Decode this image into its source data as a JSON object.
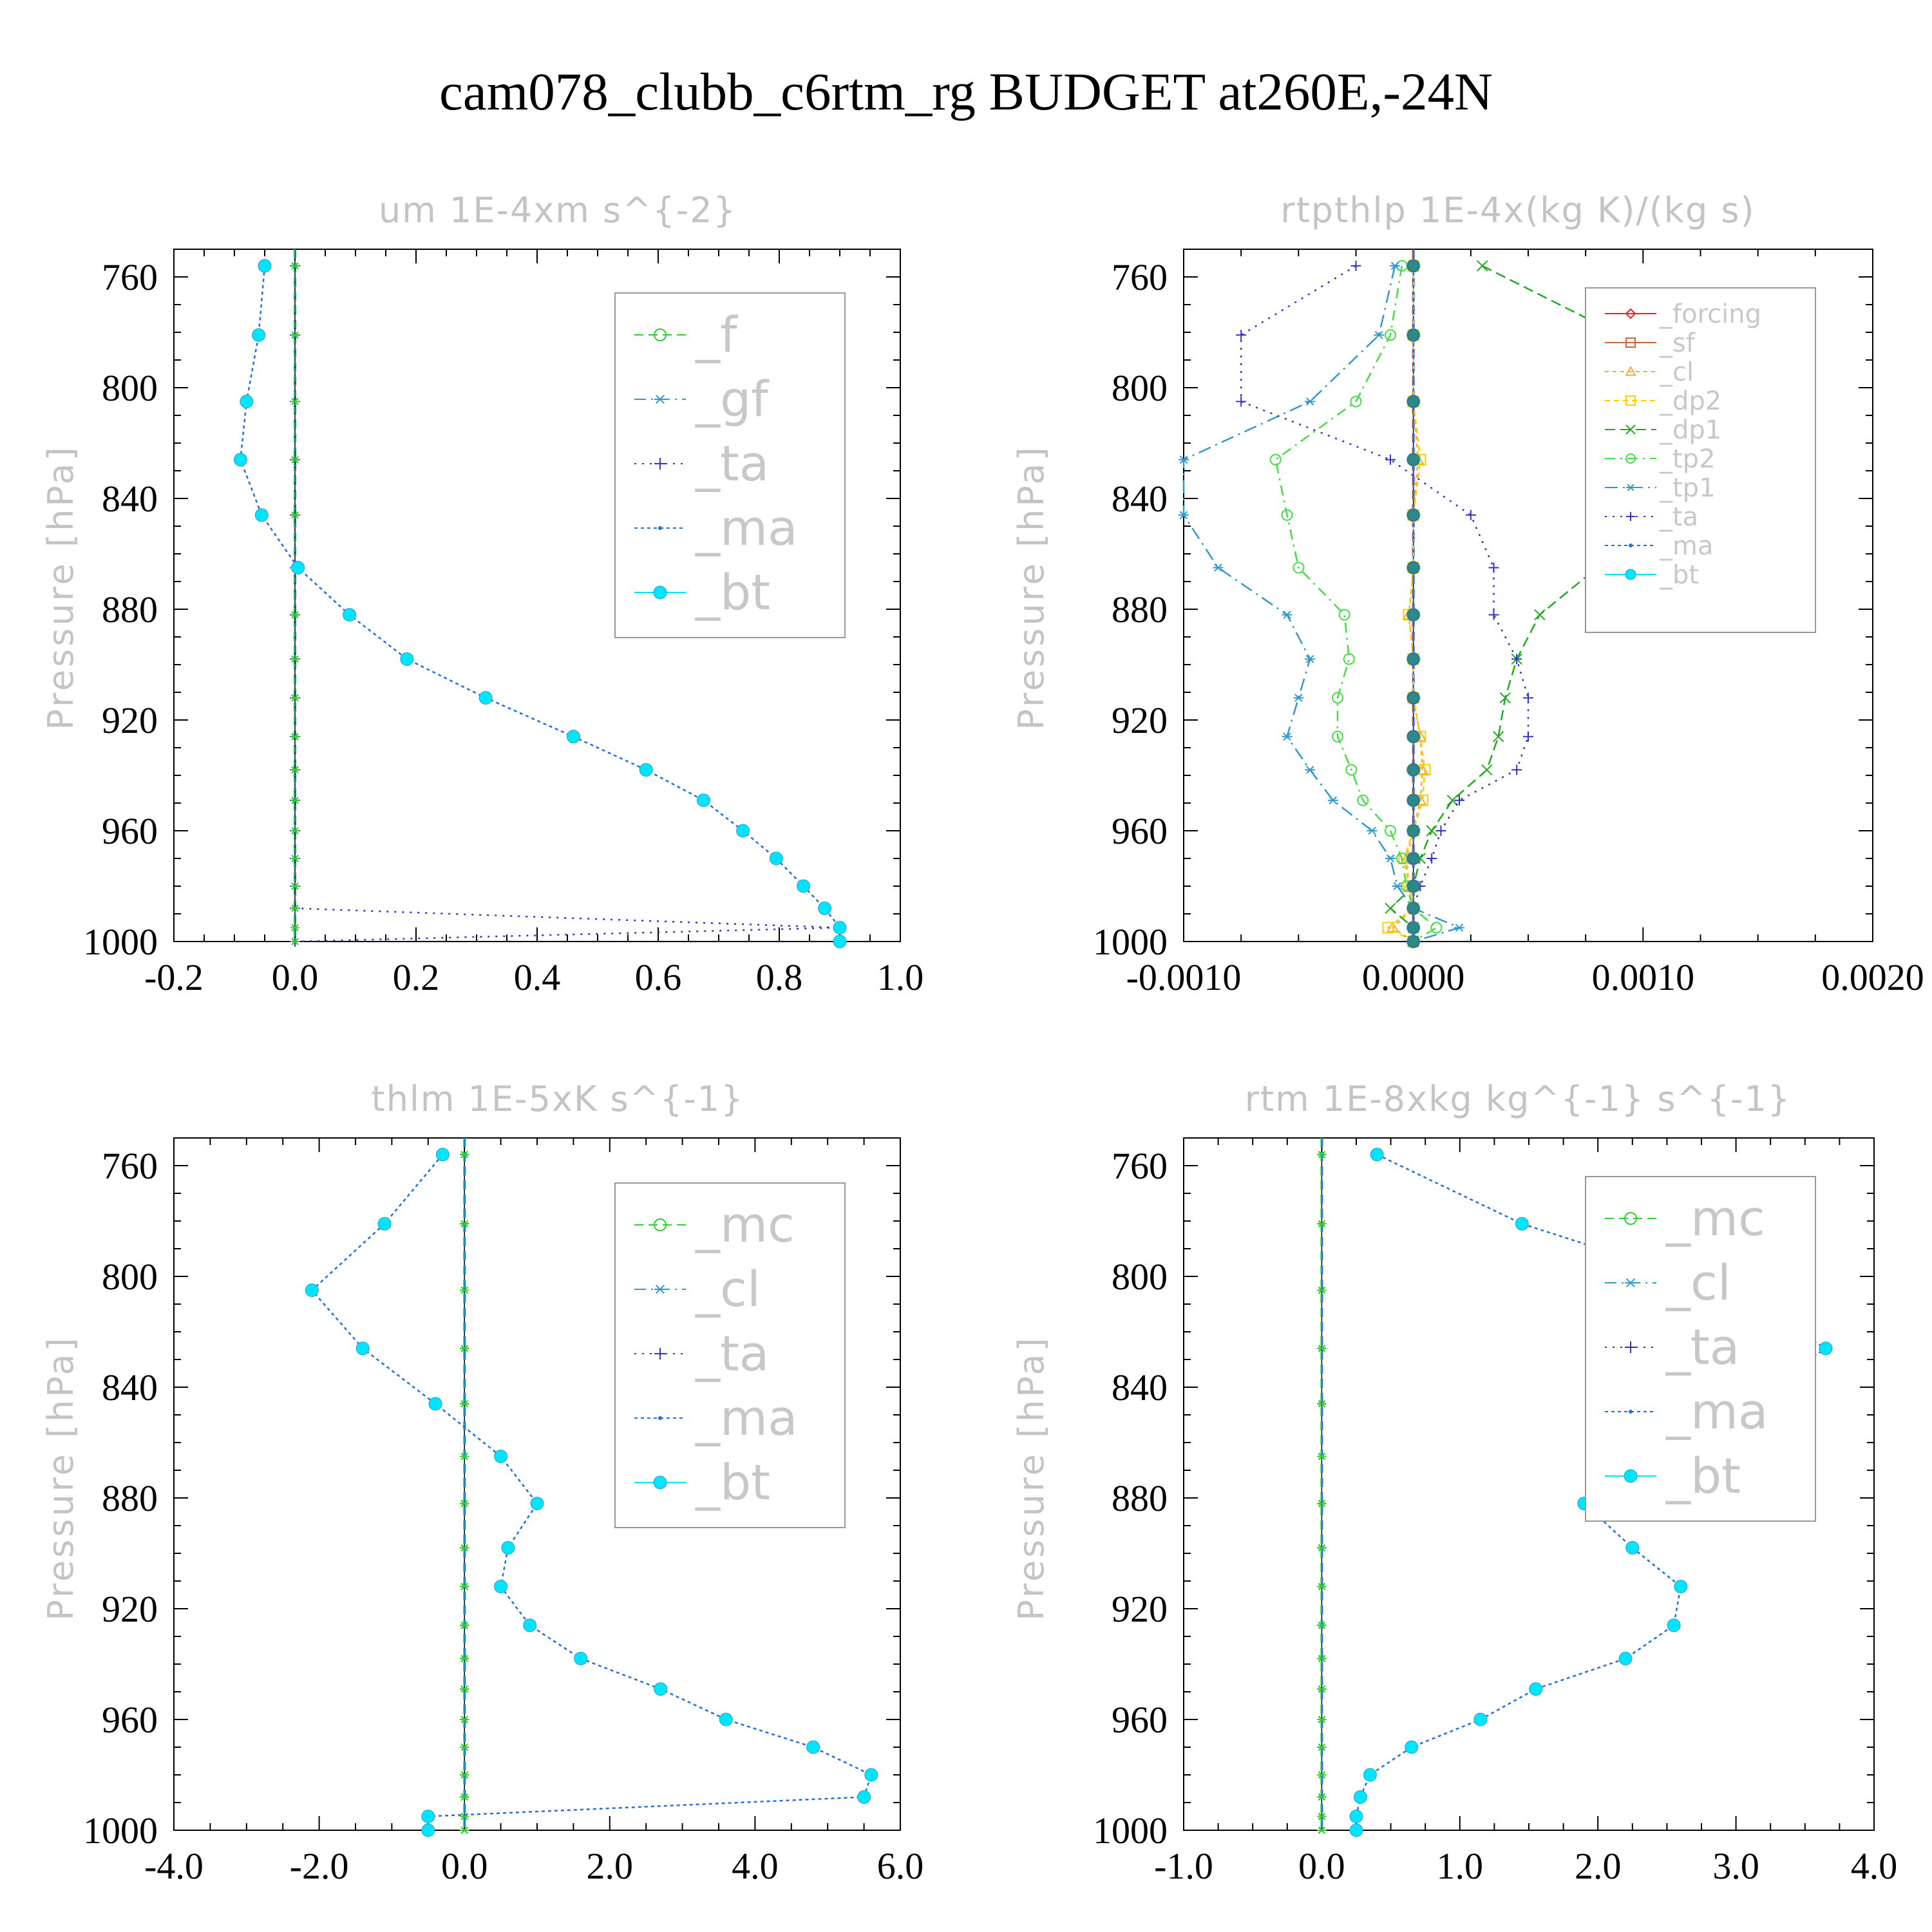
{
  "figure_title": "cam078_clubb_c6rtm_rg  BUDGET at260E,-24N",
  "colors": {
    "_f": "#33cc33",
    "_gf": "#3399cc",
    "_ta": "#3333cc",
    "_ma": "#1f6fe0",
    "_bt": "#00e5ff",
    "_forcing": "#ee2222",
    "_sf": "#cc6633",
    "_cl_r": "#ffaa33",
    "_dp2": "#ffcc00",
    "_dp1": "#22aa22",
    "_tp2": "#44dd44",
    "_tp1": "#3399cc",
    "_mc": "#33cc33",
    "_cl": "#3399cc"
  },
  "chart_data": [
    {
      "type": "line",
      "title": "um   1E-4xm s^{-2}",
      "ylabel": "Pressure [hPa]",
      "xlim": [
        -0.2,
        1.0
      ],
      "ylim": [
        750,
        1000
      ],
      "y_inverted": true,
      "xticks": [
        "-0.2",
        "0.0",
        "0.2",
        "0.4",
        "0.6",
        "0.8",
        "1.0"
      ],
      "yticks": [
        "760",
        "800",
        "840",
        "880",
        "920",
        "960",
        "1000"
      ],
      "legend_position": "top-right",
      "legend_style": "big",
      "y": [
        756,
        781,
        805,
        826,
        846,
        865,
        882,
        898,
        912,
        926,
        938,
        949,
        960,
        970,
        980,
        988,
        995,
        1000
      ],
      "series": [
        {
          "name": "_f",
          "style": "zero",
          "values": [
            0,
            0,
            0,
            0,
            0,
            0,
            0,
            0,
            0,
            0,
            0,
            0,
            0,
            0,
            0,
            0,
            0,
            0
          ]
        },
        {
          "name": "_gf",
          "style": "zero",
          "values": [
            0,
            0,
            0,
            0,
            0,
            0,
            0,
            0,
            0,
            0,
            0,
            0,
            0,
            0,
            0,
            0,
            0,
            0
          ]
        },
        {
          "name": "_ta",
          "style": "ta",
          "values": [
            0,
            0,
            0,
            0,
            0,
            0,
            0,
            0,
            0,
            0,
            0,
            0,
            0,
            0,
            0,
            0,
            0.9,
            0
          ]
        },
        {
          "name": "_ma",
          "style": "zero",
          "values": [
            0,
            0,
            0,
            0,
            0,
            0,
            0,
            0,
            0,
            0,
            0,
            0,
            0,
            0,
            0,
            0,
            0,
            0
          ]
        },
        {
          "name": "_bt",
          "style": "bt",
          "values": [
            -0.05,
            -0.06,
            -0.08,
            -0.09,
            -0.055,
            0.005,
            0.09,
            0.185,
            0.315,
            0.46,
            0.58,
            0.675,
            0.74,
            0.795,
            0.84,
            0.875,
            0.9,
            0.9
          ]
        }
      ]
    },
    {
      "type": "line",
      "title": "rtpthlp   1E-4x(kg K)/(kg s)",
      "ylabel": "Pressure [hPa]",
      "xlim": [
        -0.001,
        0.002
      ],
      "ylim": [
        750,
        1000
      ],
      "y_inverted": true,
      "xticks": [
        "-0.0010",
        "0.0000",
        "0.0010",
        "0.0020"
      ],
      "yticks": [
        "760",
        "800",
        "840",
        "880",
        "920",
        "960",
        "1000"
      ],
      "legend_position": "top-right",
      "legend_style": "small",
      "y": [
        756,
        781,
        805,
        826,
        846,
        865,
        882,
        898,
        912,
        926,
        938,
        949,
        960,
        970,
        980,
        988,
        995,
        1000
      ],
      "series": [
        {
          "name": "_forcing",
          "style": "zero",
          "values": [
            0,
            0,
            0,
            0,
            0,
            0,
            0,
            0,
            0,
            0,
            0,
            0,
            0,
            0,
            0,
            0,
            0,
            0
          ]
        },
        {
          "name": "_sf",
          "style": "zero",
          "values": [
            0,
            0,
            0,
            0,
            0,
            0,
            0,
            0,
            0,
            0,
            0,
            0,
            0,
            0,
            0,
            0,
            0,
            0
          ]
        },
        {
          "name": "_cl",
          "style": "cl_r",
          "values": [
            0,
            0,
            0,
            2e-05,
            0,
            0,
            -2e-05,
            0,
            0,
            3e-05,
            4e-05,
            3e-05,
            0,
            -3e-05,
            -2e-05,
            0,
            -9e-05,
            0
          ]
        },
        {
          "name": "_dp2",
          "style": "dp2",
          "values": [
            0,
            0,
            0,
            3e-05,
            0,
            0,
            -2e-05,
            0,
            0,
            3e-05,
            5e-05,
            4e-05,
            0,
            -4e-05,
            -2e-05,
            0,
            -0.00011,
            0
          ]
        },
        {
          "name": "_dp1",
          "style": "dp1",
          "values": [
            0.0003,
            0.0009,
            0.00145,
            0.00165,
            0.0011,
            0.0008,
            0.00055,
            0.00045,
            0.0004,
            0.00037,
            0.00032,
            0.00017,
            8e-05,
            3e-05,
            0,
            -0.0001,
            0,
            0
          ]
        },
        {
          "name": "_tp2",
          "style": "tp2",
          "values": [
            -5e-05,
            -0.0001,
            -0.00025,
            -0.0006,
            -0.00055,
            -0.0005,
            -0.0003,
            -0.00028,
            -0.00033,
            -0.00033,
            -0.00027,
            -0.00022,
            -0.0001,
            -5e-05,
            -3e-05,
            0,
            0.0001,
            0
          ]
        },
        {
          "name": "_tp1",
          "style": "tp1",
          "values": [
            -8e-05,
            -0.00015,
            -0.00045,
            -0.001,
            -0.001,
            -0.00085,
            -0.00055,
            -0.00045,
            -0.0005,
            -0.00055,
            -0.00045,
            -0.00035,
            -0.00018,
            -0.0001,
            -7e-05,
            0,
            0.0002,
            0
          ]
        },
        {
          "name": "_ta",
          "style": "ta",
          "values": [
            -0.00025,
            -0.00075,
            -0.00075,
            -0.0001,
            0.00025,
            0.00035,
            0.00035,
            0.00045,
            0.0005,
            0.0005,
            0.00045,
            0.0002,
            0.00012,
            8e-05,
            3e-05,
            0,
            0,
            0
          ]
        },
        {
          "name": "_ma",
          "style": "zero",
          "values": [
            0,
            0,
            0,
            0,
            0,
            0,
            0,
            0,
            0,
            0,
            0,
            0,
            0,
            0,
            0,
            0,
            0,
            0
          ]
        },
        {
          "name": "_bt",
          "style": "bt",
          "values": [
            0,
            0,
            0,
            0,
            0,
            0,
            0,
            0,
            0,
            0,
            0,
            0,
            0,
            0,
            0,
            0,
            0,
            0
          ]
        }
      ]
    },
    {
      "type": "line",
      "title": "thlm   1E-5xK s^{-1}",
      "ylabel": "Pressure [hPa]",
      "xlim": [
        -4.0,
        6.0
      ],
      "ylim": [
        750,
        1000
      ],
      "y_inverted": true,
      "xticks": [
        "-4.0",
        "-2.0",
        "0.0",
        "2.0",
        "4.0",
        "6.0"
      ],
      "yticks": [
        "760",
        "800",
        "840",
        "880",
        "920",
        "960",
        "1000"
      ],
      "legend_position": "top-right",
      "legend_style": "big",
      "y": [
        756,
        781,
        805,
        826,
        846,
        865,
        882,
        898,
        912,
        926,
        938,
        949,
        960,
        970,
        980,
        988,
        995,
        1000
      ],
      "series": [
        {
          "name": "_mc",
          "style": "zero",
          "values": [
            0,
            0,
            0,
            0,
            0,
            0,
            0,
            0,
            0,
            0,
            0,
            0,
            0,
            0,
            0,
            0,
            0,
            0
          ]
        },
        {
          "name": "_cl",
          "style": "zero",
          "values": [
            0,
            0,
            0,
            0,
            0,
            0,
            0,
            0,
            0,
            0,
            0,
            0,
            0,
            0,
            0,
            0,
            0,
            0
          ]
        },
        {
          "name": "_ta",
          "style": "zero",
          "values": [
            0,
            0,
            0,
            0,
            0,
            0,
            0,
            0,
            0,
            0,
            0,
            0,
            0,
            0,
            0,
            0,
            0,
            0
          ]
        },
        {
          "name": "_ma",
          "style": "zero",
          "values": [
            0,
            0,
            0,
            0,
            0,
            0,
            0,
            0,
            0,
            0,
            0,
            0,
            0,
            0,
            0,
            0,
            0,
            0
          ]
        },
        {
          "name": "_bt",
          "style": "bt",
          "values": [
            -0.3,
            -1.1,
            -2.1,
            -1.4,
            -0.4,
            0.5,
            1.0,
            0.6,
            0.5,
            0.9,
            1.6,
            2.7,
            3.6,
            4.8,
            5.6,
            5.5,
            -0.5,
            -0.5
          ]
        }
      ]
    },
    {
      "type": "line",
      "title": "rtm   1E-8xkg kg^{-1} s^{-1}",
      "ylabel": "Pressure [hPa]",
      "xlim": [
        -1.0,
        4.0
      ],
      "ylim": [
        750,
        1000
      ],
      "y_inverted": true,
      "xticks": [
        "-1.0",
        "0.0",
        "1.0",
        "2.0",
        "3.0",
        "4.0"
      ],
      "yticks": [
        "760",
        "800",
        "840",
        "880",
        "920",
        "960",
        "1000"
      ],
      "legend_position": "top-right",
      "legend_style": "big",
      "y": [
        756,
        781,
        805,
        826,
        846,
        865,
        882,
        898,
        912,
        926,
        938,
        949,
        960,
        970,
        980,
        988,
        995,
        1000
      ],
      "series": [
        {
          "name": "_mc",
          "style": "zero",
          "values": [
            0,
            0,
            0,
            0,
            0,
            0,
            0,
            0,
            0,
            0,
            0,
            0,
            0,
            0,
            0,
            0,
            0,
            0
          ]
        },
        {
          "name": "_cl",
          "style": "zero",
          "values": [
            0,
            0,
            0,
            0,
            0,
            0,
            0,
            0,
            0,
            0,
            0,
            0,
            0,
            0,
            0,
            0,
            0,
            0
          ]
        },
        {
          "name": "_ta",
          "style": "zero",
          "values": [
            0,
            0,
            0,
            0,
            0,
            0,
            0,
            0,
            0,
            0,
            0,
            0,
            0,
            0,
            0,
            0,
            0,
            0
          ]
        },
        {
          "name": "_ma",
          "style": "zero",
          "values": [
            0,
            0,
            0,
            0,
            0,
            0,
            0,
            0,
            0,
            0,
            0,
            0,
            0,
            0,
            0,
            0,
            0,
            0
          ]
        },
        {
          "name": "_bt",
          "style": "bt",
          "values": [
            0.4,
            1.45,
            2.95,
            3.65,
            3.05,
            2.5,
            1.9,
            2.25,
            2.6,
            2.55,
            2.2,
            1.55,
            1.15,
            0.65,
            0.35,
            0.28,
            0.25,
            0.25
          ]
        }
      ]
    }
  ]
}
